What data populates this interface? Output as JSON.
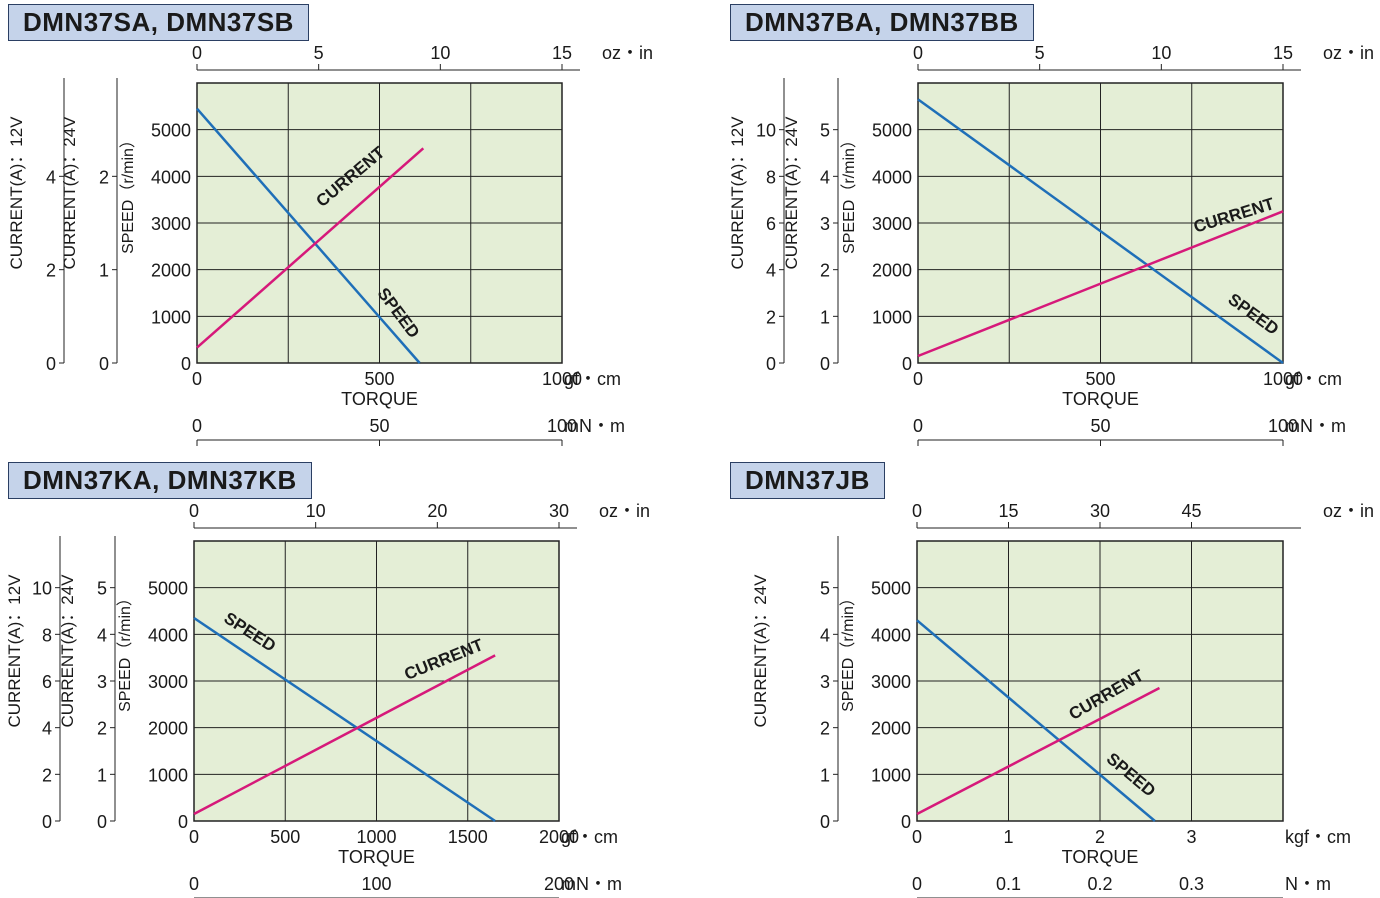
{
  "panels": [
    {
      "title": "DMN37SA, DMN37SB"
    },
    {
      "title": "DMN37BA, DMN37BB"
    },
    {
      "title": "DMN37KA, DMN37KB"
    },
    {
      "title": "DMN37JB"
    }
  ],
  "colors": {
    "plot_bg": "#e4eed6",
    "speed": "#1f6fb8",
    "current": "#d6197a",
    "title_bg": "#c5d3ea",
    "grid": "#222222"
  },
  "chart_data": [
    {
      "type": "line",
      "title": "DMN37SA, DMN37SB",
      "xlabel": "TORQUE",
      "x_unit": "gf・cm",
      "xlim": [
        0,
        1000
      ],
      "x_ticks": [
        0,
        500,
        1000
      ],
      "x_ticks_labels": [
        "0",
        "500",
        "1000"
      ],
      "top_axis": {
        "unit": "oz・in",
        "ticks": [
          "0",
          "5",
          "10",
          "15"
        ],
        "max": 15
      },
      "bottom_axis": {
        "unit": "mN・m",
        "ticks": [
          "0",
          "50",
          "100"
        ],
        "max": 100
      },
      "speed_axis": {
        "label": "SPEED（r/min）",
        "ylim": [
          0,
          6000
        ],
        "ticks": [
          "0",
          "1000",
          "2000",
          "3000",
          "4000",
          "5000"
        ]
      },
      "current_axes": [
        {
          "label": "CURRENT(A)：24V",
          "ylim": [
            0,
            3
          ],
          "ticks": [
            "0",
            "1",
            "2"
          ]
        },
        {
          "label": "CURRENT(A)：12V",
          "ylim": [
            0,
            6
          ],
          "ticks": [
            "0",
            "2",
            "4"
          ]
        }
      ],
      "series": [
        {
          "name": "SPEED",
          "x": [
            0,
            610
          ],
          "y": [
            5450,
            0
          ],
          "label_pos": [
            540,
            1000
          ],
          "label_angle": 53
        },
        {
          "name": "CURRENT",
          "x": [
            0,
            620
          ],
          "y": [
            330,
            4600
          ],
          "label_pos": [
            430,
            3900
          ],
          "label_angle": -40
        }
      ]
    },
    {
      "type": "line",
      "title": "DMN37BA, DMN37BB",
      "xlabel": "TORQUE",
      "x_unit": "gf・cm",
      "xlim": [
        0,
        1000
      ],
      "x_ticks": [
        0,
        500,
        1000
      ],
      "x_ticks_labels": [
        "0",
        "500",
        "1000"
      ],
      "top_axis": {
        "unit": "oz・in",
        "ticks": [
          "0",
          "5",
          "10",
          "15"
        ],
        "max": 15
      },
      "bottom_axis": {
        "unit": "mN・m",
        "ticks": [
          "0",
          "50",
          "100"
        ],
        "max": 100
      },
      "speed_axis": {
        "label": "SPEED（r/min）",
        "ylim": [
          0,
          6000
        ],
        "ticks": [
          "0",
          "1000",
          "2000",
          "3000",
          "4000",
          "5000"
        ]
      },
      "current_axes": [
        {
          "label": "CURRENT(A)：24V",
          "ylim": [
            0,
            6
          ],
          "ticks": [
            "0",
            "1",
            "2",
            "3",
            "4",
            "5"
          ]
        },
        {
          "label": "CURRENT(A)：12V",
          "ylim": [
            0,
            12
          ],
          "ticks": [
            "0",
            "2",
            "4",
            "6",
            "8",
            "10"
          ]
        }
      ],
      "series": [
        {
          "name": "SPEED",
          "x": [
            0,
            1000
          ],
          "y": [
            5650,
            0
          ],
          "label_pos": [
            910,
            950
          ],
          "label_angle": 36
        },
        {
          "name": "CURRENT",
          "x": [
            0,
            1000
          ],
          "y": [
            150,
            3250
          ],
          "label_pos": [
            870,
            3050
          ],
          "label_angle": -17
        }
      ]
    },
    {
      "type": "line",
      "title": "DMN37KA, DMN37KB",
      "xlabel": "TORQUE",
      "x_unit": "gf・cm",
      "xlim": [
        0,
        2000
      ],
      "x_ticks": [
        0,
        500,
        1000,
        1500,
        2000
      ],
      "x_ticks_labels": [
        "0",
        "500",
        "1000",
        "1500",
        "2000"
      ],
      "top_axis": {
        "unit": "oz・in",
        "ticks": [
          "0",
          "10",
          "20",
          "30"
        ],
        "max": 30
      },
      "bottom_axis": {
        "unit": "mN・m",
        "ticks": [
          "0",
          "100",
          "200"
        ],
        "max": 200
      },
      "speed_axis": {
        "label": "SPEED（r/min）",
        "ylim": [
          0,
          6000
        ],
        "ticks": [
          "0",
          "1000",
          "2000",
          "3000",
          "4000",
          "5000"
        ]
      },
      "current_axes": [
        {
          "label": "CURRENT(A)：24V",
          "ylim": [
            0,
            6
          ],
          "ticks": [
            "0",
            "1",
            "2",
            "3",
            "4",
            "5"
          ]
        },
        {
          "label": "CURRENT(A)：12V",
          "ylim": [
            0,
            12
          ],
          "ticks": [
            "0",
            "2",
            "4",
            "6",
            "8",
            "10"
          ]
        }
      ],
      "series": [
        {
          "name": "SPEED",
          "x": [
            0,
            1650
          ],
          "y": [
            4350,
            0
          ],
          "label_pos": [
            290,
            3950
          ],
          "label_angle": 33
        },
        {
          "name": "CURRENT",
          "x": [
            0,
            1650
          ],
          "y": [
            150,
            3550
          ],
          "label_pos": [
            1380,
            3350
          ],
          "label_angle": -22
        }
      ]
    },
    {
      "type": "line",
      "title": "DMN37JB",
      "xlabel": "TORQUE",
      "x_unit": "kgf・cm",
      "xlim": [
        0,
        4
      ],
      "x_ticks": [
        0,
        1,
        2,
        3
      ],
      "x_ticks_labels": [
        "0",
        "1",
        "2",
        "3"
      ],
      "top_axis": {
        "unit": "oz・in",
        "ticks": [
          "0",
          "15",
          "30",
          "45"
        ],
        "max": 60
      },
      "bottom_axis": {
        "unit": "N・m",
        "ticks": [
          "0",
          "0.1",
          "0.2",
          "0.3"
        ],
        "max": 0.4
      },
      "speed_axis": {
        "label": "SPEED（r/min）",
        "ylim": [
          0,
          6000
        ],
        "ticks": [
          "0",
          "1000",
          "2000",
          "3000",
          "4000",
          "5000"
        ]
      },
      "current_axes": [
        {
          "label": "CURRENT(A)：24V",
          "ylim": [
            0,
            6
          ],
          "ticks": [
            "0",
            "1",
            "2",
            "3",
            "4",
            "5"
          ]
        }
      ],
      "series": [
        {
          "name": "SPEED",
          "x": [
            0,
            2.6
          ],
          "y": [
            4300,
            0
          ],
          "label_pos": [
            2.3,
            900
          ],
          "label_angle": 40
        },
        {
          "name": "CURRENT",
          "x": [
            0,
            2.65
          ],
          "y": [
            150,
            2850
          ],
          "label_pos": [
            2.1,
            2600
          ],
          "label_angle": -30
        }
      ]
    }
  ]
}
